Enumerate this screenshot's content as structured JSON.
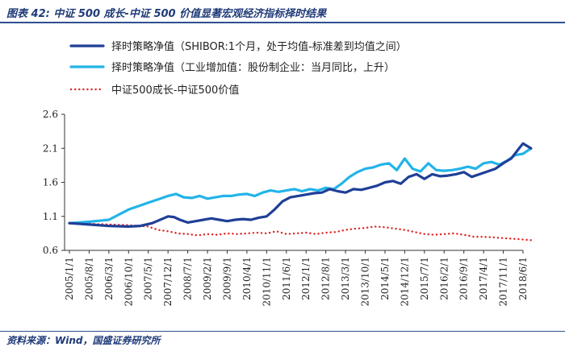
{
  "figure": {
    "title": "图表 42:  中证 500 成长-中证 500 价值显著宏观经济指标择时结果",
    "source": "资料来源：Wind，国盛证券研究所"
  },
  "chart_data": {
    "type": "line",
    "ylim": [
      0.6,
      2.6
    ],
    "yticks": [
      "0.6",
      "1.1",
      "1.6",
      "2.1",
      "2.6"
    ],
    "grid": false,
    "legend_position": "top-left",
    "xtick_labels": [
      "2005/1/1",
      "2005/8/1",
      "2006/3/1",
      "2006/10/1",
      "2007/5/1",
      "2007/12/1",
      "2008/7/1",
      "2009/2/1",
      "2009/9/1",
      "2010/4/1",
      "2010/11/1",
      "2011/6/1",
      "2012/1/1",
      "2012/8/1",
      "2013/3/1",
      "2013/10/1",
      "2014/5/1",
      "2014/12/1",
      "2015/7/1",
      "2016/2/1",
      "2016/9/1",
      "2017/4/1",
      "2017/11/1",
      "2018/6/1"
    ],
    "series": [
      {
        "name": "择时策略净值（SHIBOR:1个月，处于均值-标准差到均值之间）",
        "color": "#1f3f97",
        "style": "solid",
        "x": [
          0,
          1,
          2,
          3,
          3.6,
          4.2,
          5,
          5.3,
          5.6,
          6,
          6.4,
          6.8,
          7.2,
          7.6,
          8,
          8.4,
          8.8,
          9.2,
          9.6,
          10,
          10.4,
          10.8,
          11.2,
          11.6,
          12,
          12.4,
          12.8,
          13.2,
          13.6,
          14,
          14.4,
          14.8,
          15.2,
          15.6,
          16,
          16.4,
          16.8,
          17.2,
          17.6,
          18,
          18.4,
          18.8,
          19.2,
          19.6,
          20,
          20.4,
          20.8,
          21.2,
          21.6,
          22,
          22.4,
          22.8,
          23,
          23.4
        ],
        "y": [
          1.0,
          0.98,
          0.96,
          0.95,
          0.96,
          1.0,
          1.1,
          1.09,
          1.05,
          1.01,
          1.03,
          1.05,
          1.07,
          1.05,
          1.03,
          1.05,
          1.06,
          1.05,
          1.08,
          1.1,
          1.2,
          1.32,
          1.38,
          1.4,
          1.42,
          1.44,
          1.45,
          1.5,
          1.47,
          1.45,
          1.5,
          1.49,
          1.52,
          1.55,
          1.6,
          1.62,
          1.58,
          1.68,
          1.72,
          1.65,
          1.72,
          1.69,
          1.7,
          1.72,
          1.75,
          1.68,
          1.72,
          1.76,
          1.8,
          1.88,
          1.95,
          2.1,
          2.17,
          2.1
        ]
      },
      {
        "name": "择时策略净值（工业增加值：股份制企业：当月同比，上升）",
        "color": "#22b4e8",
        "style": "solid",
        "x": [
          0,
          1,
          2,
          3,
          4,
          4.5,
          5,
          5.4,
          5.8,
          6.2,
          6.6,
          7,
          7.4,
          7.8,
          8.2,
          8.6,
          9,
          9.4,
          9.8,
          10.2,
          10.6,
          11,
          11.4,
          11.8,
          12.2,
          12.6,
          13,
          13.4,
          13.8,
          14.2,
          14.6,
          15,
          15.4,
          15.8,
          16.2,
          16.6,
          17,
          17.4,
          17.8,
          18.2,
          18.6,
          19,
          19.4,
          19.8,
          20.2,
          20.6,
          21,
          21.4,
          21.8,
          22.2,
          22.6,
          23,
          23.4
        ],
        "y": [
          1.0,
          1.02,
          1.05,
          1.2,
          1.3,
          1.35,
          1.4,
          1.43,
          1.38,
          1.37,
          1.4,
          1.36,
          1.38,
          1.4,
          1.4,
          1.42,
          1.43,
          1.4,
          1.45,
          1.48,
          1.46,
          1.48,
          1.5,
          1.47,
          1.5,
          1.48,
          1.52,
          1.5,
          1.58,
          1.68,
          1.75,
          1.8,
          1.82,
          1.86,
          1.88,
          1.78,
          1.95,
          1.8,
          1.76,
          1.88,
          1.78,
          1.77,
          1.78,
          1.8,
          1.83,
          1.8,
          1.88,
          1.9,
          1.86,
          1.92,
          2.0,
          2.02,
          2.1
        ]
      },
      {
        "name": "中证500成长-中证500价值",
        "color": "#e02222",
        "style": "dotted",
        "x": [
          0,
          1,
          2,
          3,
          4,
          4.5,
          5,
          5.5,
          6,
          6.5,
          7,
          7.5,
          8,
          8.5,
          9,
          9.5,
          10,
          10.5,
          11,
          11.5,
          12,
          12.5,
          13,
          13.5,
          14,
          14.5,
          15,
          15.5,
          16,
          16.5,
          17,
          17.5,
          18,
          18.5,
          19,
          19.5,
          20,
          20.5,
          21,
          21.5,
          22,
          22.5,
          23,
          23.4
        ],
        "y": [
          1.0,
          0.99,
          0.98,
          0.97,
          0.95,
          0.9,
          0.88,
          0.85,
          0.84,
          0.82,
          0.84,
          0.83,
          0.85,
          0.84,
          0.85,
          0.86,
          0.85,
          0.88,
          0.84,
          0.85,
          0.86,
          0.84,
          0.86,
          0.87,
          0.9,
          0.92,
          0.93,
          0.95,
          0.94,
          0.92,
          0.9,
          0.87,
          0.84,
          0.83,
          0.84,
          0.85,
          0.83,
          0.8,
          0.8,
          0.79,
          0.78,
          0.77,
          0.76,
          0.75
        ]
      }
    ]
  }
}
